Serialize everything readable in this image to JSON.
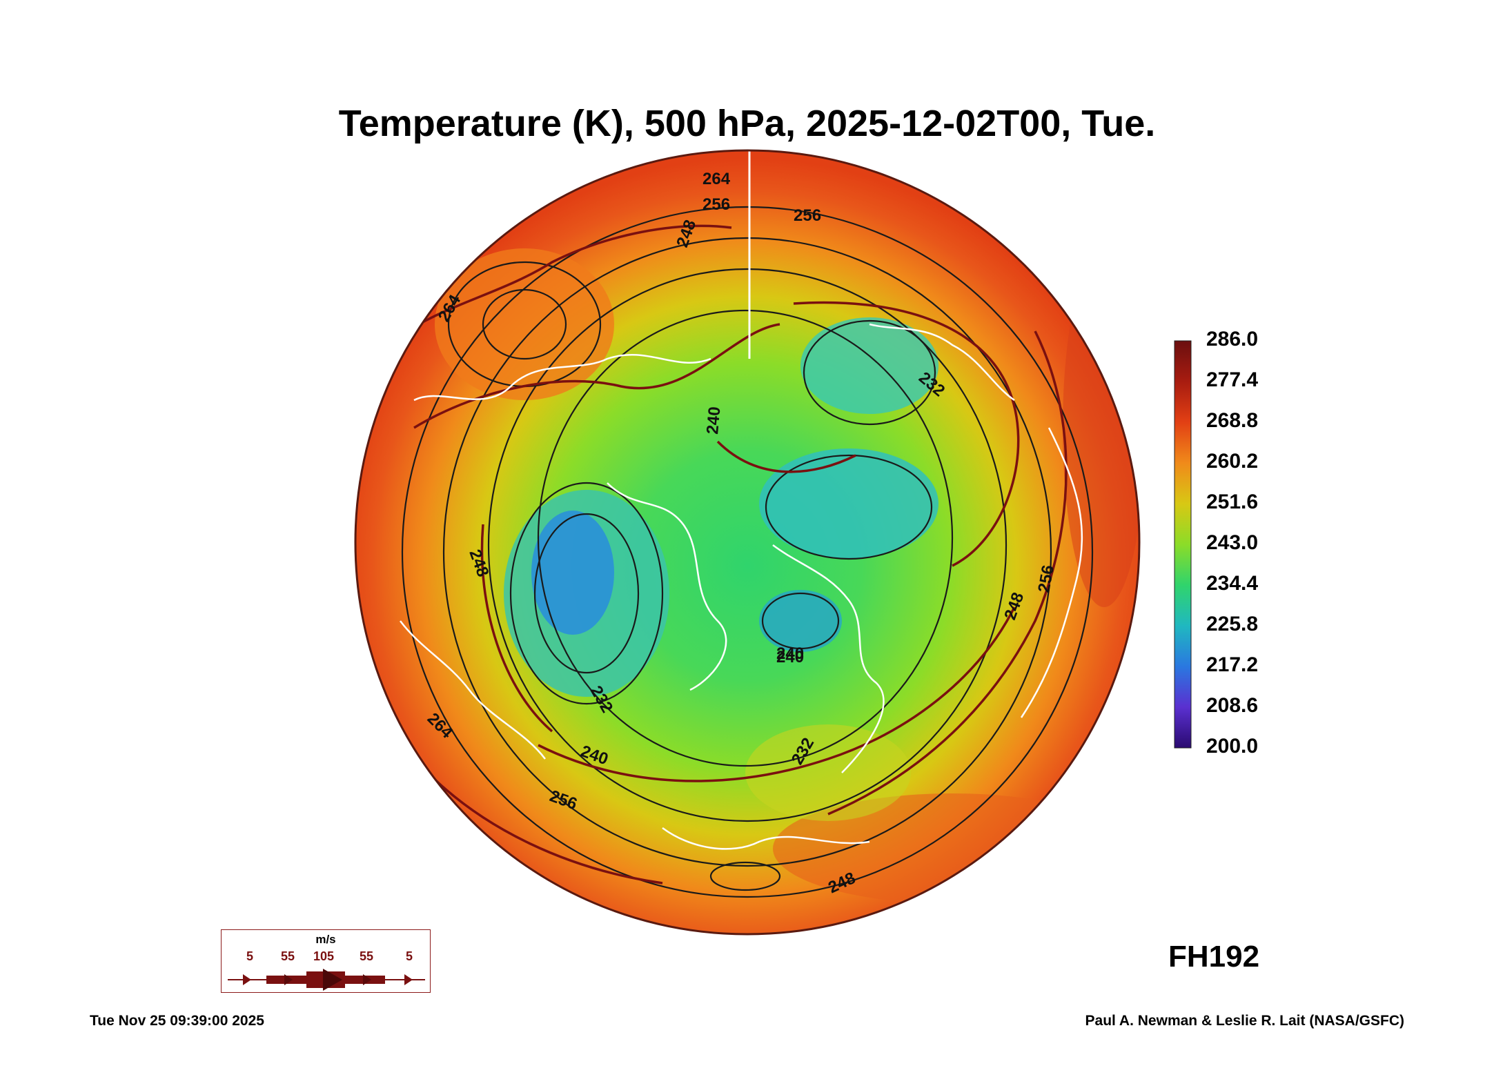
{
  "title": "Temperature (K), 500 hPa, 2025-12-02T00, Tue.",
  "colorbar": {
    "labels": [
      "286.0",
      "277.4",
      "268.8",
      "260.2",
      "251.6",
      "243.0",
      "234.4",
      "225.8",
      "217.2",
      "208.6",
      "200.0"
    ],
    "colors": [
      "#6b0f0f",
      "#a81c10",
      "#e24014",
      "#f08a1a",
      "#d8c814",
      "#8cdc28",
      "#30d46c",
      "#20b8c0",
      "#2a78e0",
      "#5a30d0",
      "#2a0a70"
    ]
  },
  "contour_labels": [
    "264",
    "256",
    "256",
    "248",
    "240",
    "232",
    "264",
    "256",
    "240",
    "232",
    "248",
    "256",
    "248",
    "264",
    "240",
    "248",
    "232",
    "240"
  ],
  "vector_legend": {
    "unit": "m/s",
    "values": [
      "5",
      "55",
      "105",
      "55",
      "5"
    ]
  },
  "forecast_hour": "FH192",
  "timestamp": "Tue Nov 25 09:39:00 2025",
  "credit": "Paul A. Newman & Leslie R. Lait (NASA/GSFC)",
  "colors": {
    "line": "#1a1a1a",
    "stream": "#7a1010",
    "coast": "#ffffff"
  }
}
